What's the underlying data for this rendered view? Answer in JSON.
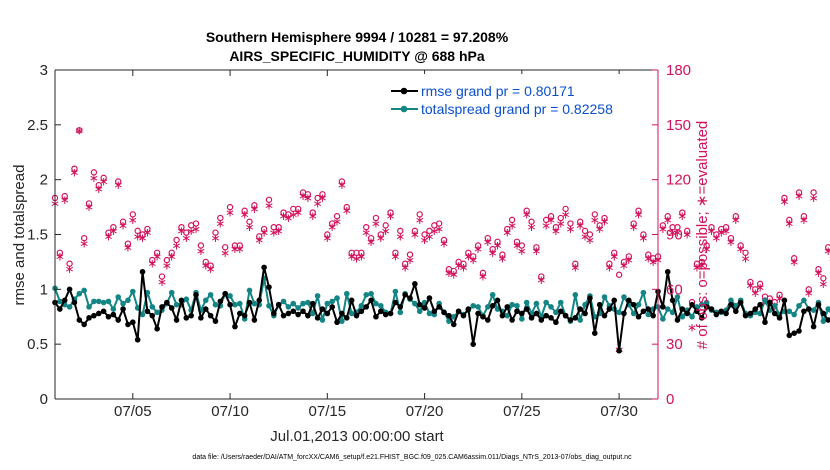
{
  "chart_data": {
    "type": "line",
    "title_line1": "Southern Hemisphere 9994 / 10281 = 97.208%",
    "title_line2": "AIRS_SPECIFIC_HUMIDITY @ 688 hPa",
    "xlabel": "Jul.01,2013 00:00:00 start",
    "ylabel_left": "rmse and totalspread",
    "ylabel_right": "# of obs: o=possible; ∗=evaluated",
    "xlim": [
      1,
      32
    ],
    "ylim_left": [
      0,
      3
    ],
    "ylim_right": [
      0,
      180
    ],
    "x_ticks": [
      5,
      10,
      15,
      20,
      25,
      30
    ],
    "x_tick_labels": [
      "07/05",
      "07/10",
      "07/15",
      "07/20",
      "07/25",
      "07/30"
    ],
    "y_left_ticks": [
      "0",
      "0.5",
      "1",
      "1.5",
      "2",
      "2.5",
      "3"
    ],
    "y_right_ticks": [
      "0",
      "30",
      "60",
      "90",
      "120",
      "150",
      "180"
    ],
    "legend": [
      "rmse grand pr = 0.80171",
      "totalspread grand pr = 0.82258"
    ],
    "footer": "data file: /Users/raeder/DAI/ATM_forcXX/CAM6_setup/f.e21.FHIST_BGC.f09_025.CAM6assim.011/Diags_NTrS_2013-07/obs_diag_output.nc",
    "x_step_days": 0.25,
    "colors": {
      "rmse": "#000000",
      "spread": "#138585",
      "obs": "#d1125c",
      "legend_text": "#0a4fcf"
    },
    "series": [
      {
        "name": "rmse",
        "values": [
          0.88,
          0.82,
          0.9,
          1.0,
          0.88,
          0.72,
          0.68,
          0.74,
          0.76,
          0.78,
          0.8,
          0.75,
          0.77,
          0.72,
          0.82,
          0.68,
          0.7,
          0.54,
          1.16,
          0.8,
          0.76,
          0.64,
          0.84,
          0.88,
          0.83,
          0.72,
          0.9,
          0.74,
          0.76,
          0.95,
          0.74,
          0.82,
          0.76,
          0.71,
          0.89,
          0.96,
          0.86,
          0.66,
          0.78,
          0.76,
          0.88,
          0.72,
          0.9,
          1.2,
          1.02,
          0.78,
          0.86,
          0.76,
          0.78,
          0.8,
          0.77,
          0.8,
          0.76,
          0.87,
          0.74,
          0.82,
          0.78,
          0.84,
          0.7,
          0.78,
          0.74,
          0.9,
          0.76,
          0.8,
          0.84,
          0.9,
          0.75,
          0.8,
          0.77,
          0.78,
          0.88,
          0.84,
          0.95,
          0.92,
          1.05,
          0.86,
          0.83,
          0.92,
          0.8,
          0.84,
          0.79,
          0.76,
          0.68,
          0.8,
          0.76,
          0.82,
          0.5,
          0.78,
          0.75,
          0.72,
          0.85,
          0.9,
          0.76,
          0.84,
          0.72,
          0.8,
          0.78,
          0.82,
          0.74,
          0.78,
          0.72,
          0.76,
          0.74,
          0.7,
          0.8,
          0.76,
          0.72,
          0.74,
          0.82,
          0.78,
          0.92,
          0.6,
          0.86,
          0.76,
          0.82,
          0.9,
          0.44,
          0.78,
          0.9,
          0.86,
          0.75,
          0.8,
          0.82,
          0.76,
          0.98,
          0.84,
          1.16,
          0.9,
          0.72,
          0.82,
          0.78,
          0.86,
          0.8,
          0.74,
          0.84,
          0.82,
          0.77,
          0.8,
          0.78,
          0.86,
          0.8,
          0.88,
          0.76,
          0.78,
          0.82,
          0.86,
          0.7,
          0.88,
          0.78,
          0.74,
          0.9,
          0.58,
          0.6,
          0.62,
          0.8,
          0.82,
          0.66,
          0.86,
          0.78,
          0.72,
          0.76,
          0.78
        ]
      },
      {
        "name": "totalspread",
        "values": [
          1.01,
          0.89,
          0.86,
          0.84,
          0.91,
          0.96,
          0.99,
          0.84,
          0.89,
          0.89,
          0.88,
          0.89,
          0.82,
          0.93,
          0.87,
          0.9,
          0.98,
          0.83,
          0.77,
          0.97,
          0.84,
          0.79,
          0.81,
          0.87,
          0.97,
          0.86,
          0.86,
          0.91,
          0.81,
          0.97,
          0.81,
          0.9,
          0.95,
          0.86,
          0.85,
          0.96,
          0.94,
          0.86,
          0.87,
          0.73,
          0.99,
          0.87,
          0.86,
          1.1,
          0.85,
          0.76,
          0.86,
          0.89,
          0.84,
          0.87,
          0.83,
          0.87,
          0.88,
          0.78,
          0.94,
          0.72,
          0.87,
          0.89,
          0.92,
          0.71,
          0.96,
          0.78,
          0.79,
          0.85,
          0.95,
          0.96,
          0.87,
          0.85,
          0.79,
          0.78,
          0.98,
          0.79,
          0.96,
          0.91,
          0.87,
          0.8,
          0.88,
          0.78,
          0.77,
          0.87,
          0.79,
          0.71,
          0.75,
          0.8,
          0.77,
          0.81,
          0.85,
          0.84,
          0.76,
          0.84,
          0.95,
          0.82,
          0.8,
          0.76,
          0.86,
          0.85,
          0.73,
          0.88,
          0.78,
          0.87,
          0.75,
          0.88,
          0.84,
          0.79,
          0.88,
          0.76,
          0.71,
          0.95,
          0.72,
          0.86,
          0.94,
          0.75,
          0.78,
          0.93,
          0.85,
          0.82,
          0.79,
          0.93,
          0.86,
          0.78,
          0.86,
          0.97,
          0.77,
          0.82,
          0.84,
          0.73,
          0.82,
          0.79,
          0.93,
          0.75,
          0.81,
          0.75,
          0.84,
          0.86,
          0.88,
          0.81,
          0.79,
          0.79,
          0.81,
          0.9,
          0.85,
          0.9,
          0.78,
          0.76,
          0.79,
          0.78,
          0.9,
          0.81,
          0.85,
          0.77,
          0.8,
          0.8,
          0.77,
          0.85,
          0.9,
          0.82,
          0.81,
          0.88,
          0.71,
          0.82,
          0.76,
          0.64,
          0.92,
          0.84
        ]
      },
      {
        "name": "obs_possible",
        "values": [
          110,
          80,
          111,
          74,
          126,
          147,
          88,
          107,
          124,
          117,
          121,
          91,
          94,
          119,
          97,
          85,
          101,
          92,
          90,
          93,
          76,
          80,
          67,
          76,
          80,
          87,
          94,
          91,
          95,
          96,
          84,
          75,
          73,
          91,
          99,
          83,
          105,
          84,
          84,
          103,
          97,
          106,
          89,
          93,
          109,
          94,
          94,
          102,
          101,
          104,
          104,
          113,
          112,
          102,
          110,
          112,
          90,
          96,
          100,
          119,
          105,
          80,
          80,
          80,
          94,
          88,
          99,
          90,
          95,
          102,
          80,
          92,
          74,
          79,
          92,
          101,
          90,
          92,
          95,
          96,
          87,
          71,
          70,
          75,
          74,
          80,
          78,
          84,
          69,
          88,
          82,
          86,
          79,
          93,
          98,
          86,
          84,
          103,
          97,
          83,
          67,
          98,
          100,
          94,
          99,
          104,
          96,
          74,
          97,
          92,
          90,
          101,
          95,
          99,
          74,
          80,
          68,
          75,
          78,
          96,
          103,
          90,
          79,
          77,
          78,
          95,
          100,
          94,
          94,
          102,
          92,
          53,
          74,
          75,
          84,
          94,
          90,
          93,
          94,
          88,
          100,
          84,
          80,
          64,
          60,
          63,
          56,
          55,
          53,
          57,
          110,
          98,
          77,
          113,
          100,
          60,
          113,
          71,
          66,
          83,
          79
        ]
      },
      {
        "name": "obs_evaluated",
        "values": [
          107,
          78,
          109,
          71,
          124,
          147,
          85,
          105,
          121,
          115,
          119,
          89,
          92,
          117,
          95,
          83,
          98,
          89,
          88,
          91,
          74,
          78,
          64,
          73,
          78,
          84,
          92,
          88,
          92,
          93,
          81,
          73,
          71,
          88,
          96,
          80,
          102,
          82,
          82,
          101,
          94,
          104,
          87,
          91,
          106,
          91,
          92,
          100,
          99,
          101,
          102,
          111,
          110,
          100,
          107,
          110,
          88,
          94,
          97,
          117,
          103,
          78,
          77,
          78,
          91,
          86,
          96,
          88,
          92,
          100,
          78,
          89,
          72,
          76,
          90,
          98,
          87,
          89,
          92,
          93,
          85,
          69,
          68,
          73,
          72,
          78,
          76,
          82,
          67,
          86,
          80,
          84,
          77,
          91,
          95,
          84,
          81,
          101,
          94,
          81,
          65,
          95,
          98,
          92,
          96,
          101,
          93,
          72,
          95,
          89,
          87,
          98,
          93,
          97,
          72,
          78,
          27,
          73,
          76,
          94,
          101,
          88,
          77,
          75,
          76,
          93,
          98,
          91,
          91,
          100,
          90,
          39,
          72,
          73,
          82,
          92,
          88,
          91,
          92,
          86,
          98,
          82,
          77,
          62,
          58,
          61,
          54,
          53,
          51,
          55,
          108,
          96,
          75,
          111,
          98,
          58,
          110,
          69,
          63,
          81,
          77
        ]
      }
    ]
  }
}
